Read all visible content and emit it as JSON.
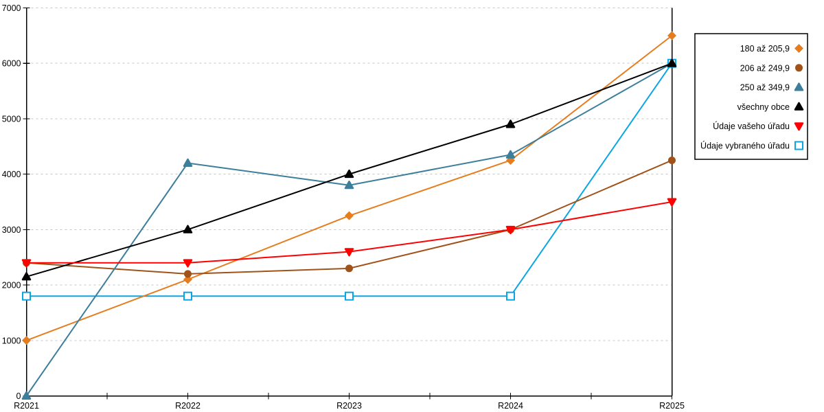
{
  "chart_data": {
    "type": "line",
    "title": "",
    "xlabel": "",
    "ylabel": "",
    "x_categories": [
      "R2021",
      "R2022",
      "R2023",
      "R2024",
      "R2025"
    ],
    "y_ticks": [
      "0",
      "1000",
      "2000",
      "3000",
      "4000",
      "5000",
      "6000",
      "7000"
    ],
    "ylim": [
      0,
      7000
    ],
    "grid": "horizontal-dashed",
    "grid_color": "#c6c6c6",
    "axis_color": "#000000",
    "legend_position": "right",
    "series": [
      {
        "name": "180 až 205,9",
        "marker": "diamond",
        "color": "#E57D1E",
        "values": [
          1000,
          2100,
          3250,
          4250,
          6500
        ]
      },
      {
        "name": "206 až 249,9",
        "marker": "circle",
        "color": "#A05219",
        "values": [
          2400,
          2200,
          2300,
          3000,
          4250
        ]
      },
      {
        "name": "250 až 349,9",
        "marker": "triangle-up",
        "color": "#3D7E9B",
        "values": [
          0,
          4200,
          3800,
          4350,
          6000
        ]
      },
      {
        "name": "všechny obce",
        "marker": "triangle-up",
        "color": "#000000",
        "values": [
          2150,
          3000,
          4000,
          4900,
          6000
        ]
      },
      {
        "name": "Údaje vašeho úřadu",
        "marker": "triangle-down",
        "color": "#FF0000",
        "values": [
          2400,
          2400,
          2600,
          3000,
          3500
        ]
      },
      {
        "name": "Údaje vybraného úřadu",
        "marker": "square-open",
        "color": "#0AA6E4",
        "values": [
          1800,
          1800,
          1800,
          1800,
          6000
        ]
      }
    ]
  }
}
